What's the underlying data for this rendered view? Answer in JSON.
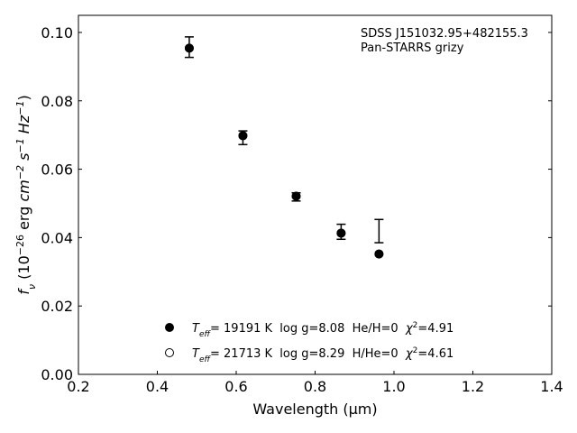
{
  "chart_data": {
    "type": "scatter",
    "annotations": [
      "SDSS J151032.95+482155.3",
      "Pan-STARRS grizy"
    ],
    "xlabel": "Wavelength (μm)",
    "ylabel": "f_ν (10^-26 erg cm^-2 s^-1 Hz^-1)",
    "xlim": [
      0.2,
      1.4
    ],
    "ylim": [
      0.0,
      0.105
    ],
    "x_ticks": [
      "0.2",
      "0.4",
      "0.6",
      "0.8",
      "1.0",
      "1.2",
      "1.4"
    ],
    "y_ticks": [
      "0.00",
      "0.02",
      "0.04",
      "0.06",
      "0.08",
      "0.10"
    ],
    "grid": false,
    "legend_position": "bottom-center",
    "observed": {
      "x": [
        0.481,
        0.617,
        0.752,
        0.866,
        0.962
      ],
      "y": [
        0.0957,
        0.0692,
        0.0519,
        0.0417,
        0.0419
      ],
      "yerr": [
        0.003,
        0.002,
        0.0012,
        0.0022,
        0.0034
      ]
    },
    "series": [
      {
        "name": "T_eff= 19191 K  log g=8.08  He/H=0  χ²=4.91",
        "marker": "filled-circle",
        "x": [
          0.481,
          0.617,
          0.752,
          0.866,
          0.962
        ],
        "y": [
          0.0954,
          0.0698,
          0.0521,
          0.0413,
          0.0352
        ]
      },
      {
        "name": "T_eff= 21713 K  log g=8.29  H/He=0  χ²=4.61",
        "marker": "open-circle",
        "x": [
          0.481,
          0.617,
          0.752,
          0.866,
          0.962
        ],
        "y": [
          0.0954,
          0.0698,
          0.0521,
          0.0413,
          0.0352
        ]
      }
    ]
  }
}
